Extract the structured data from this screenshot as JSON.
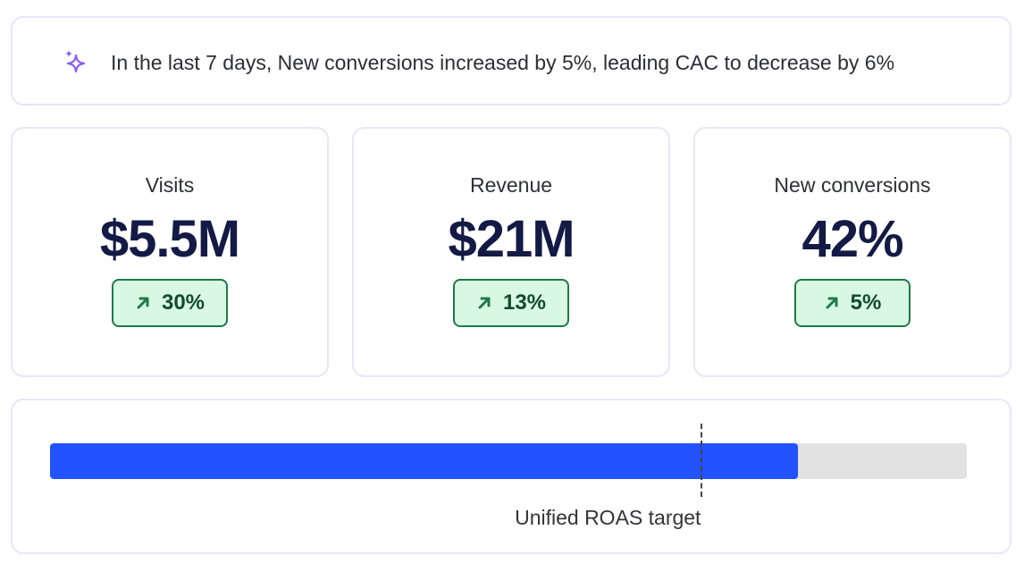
{
  "insight": {
    "text": "In the last 7 days, New conversions increased by 5%, leading CAC to decrease by 6%",
    "icon": "sparkle-icon",
    "icon_color": "#8b5cf6"
  },
  "metrics": [
    {
      "label": "Visits",
      "value": "$5.5M",
      "change": "30%",
      "trend": "up"
    },
    {
      "label": "Revenue",
      "value": "$21M",
      "change": "13%",
      "trend": "up"
    },
    {
      "label": "New conversions",
      "value": "42%",
      "change": "5%",
      "trend": "up"
    }
  ],
  "roas": {
    "progress_fraction": 0.816,
    "target_fraction": 0.71,
    "target_label": "Unified ROAS target",
    "fill_color": "#2352ff",
    "track_color": "#e2e2e2"
  },
  "colors": {
    "badge_bg": "#d8f8e4",
    "badge_border": "#1f7a46",
    "value_text": "#131a45",
    "card_border": "#e6e6fa"
  }
}
